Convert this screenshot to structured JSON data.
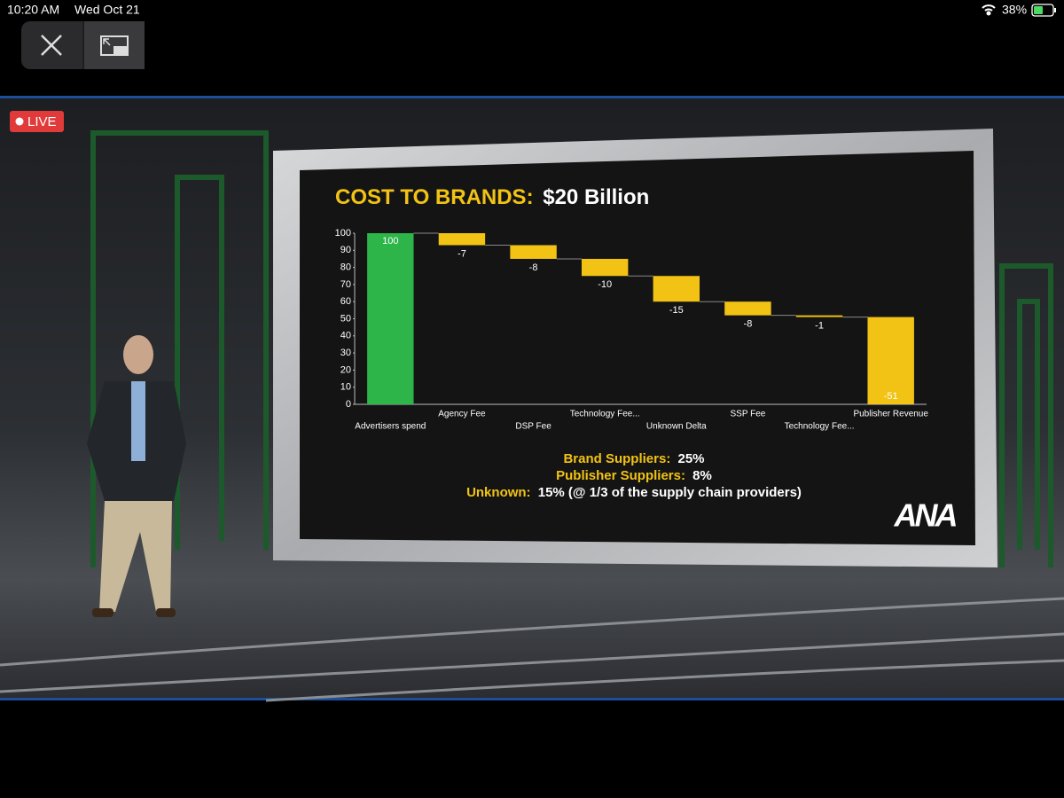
{
  "status_bar": {
    "time": "10:20 AM",
    "date": "Wed Oct 21",
    "battery": "38%"
  },
  "live_badge": "LIVE",
  "slide": {
    "title": [
      "COST TO BRANDS:",
      "$20 Billion"
    ],
    "notes": [
      {
        "label": "Brand Suppliers:",
        "value": "25%"
      },
      {
        "label": "Publisher Suppliers:",
        "value": "8%"
      },
      {
        "label": "Unknown:",
        "value": "15% (@ 1/3 of the supply chain providers)"
      }
    ],
    "logo": "ANA"
  },
  "chart_data": {
    "type": "waterfall",
    "categories": [
      "Advertisers spend",
      "Agency Fee",
      "DSP Fee",
      "Technology Fee...",
      "Unknown Delta",
      "SSP Fee",
      "Technology Fee...",
      "Publisher Revenue"
    ],
    "values": [
      100,
      -7,
      -8,
      -10,
      -15,
      -8,
      -1,
      -51
    ],
    "colors": [
      "#2db54a",
      "#f2c314",
      "#f2c314",
      "#f2c314",
      "#f2c314",
      "#f2c314",
      "#f2c314",
      "#f2c314"
    ],
    "ylim": [
      0,
      100
    ],
    "yticks": [
      0,
      10,
      20,
      30,
      40,
      50,
      60,
      70,
      80,
      90,
      100
    ]
  }
}
